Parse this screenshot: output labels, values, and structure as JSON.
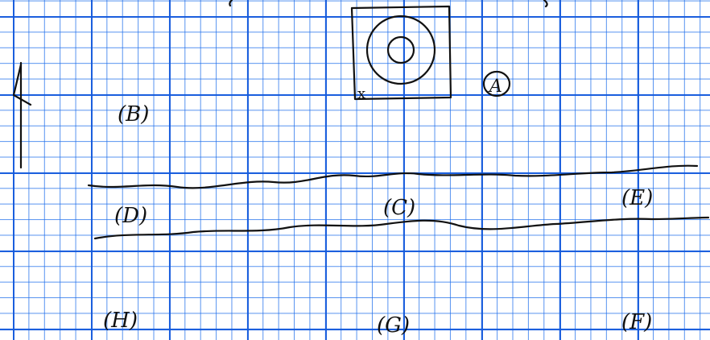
{
  "colors": {
    "paper": "#ffffff",
    "grid": "#1e6eeb",
    "ink": "#111111"
  },
  "labels": {
    "a": "A",
    "b": "(B)",
    "c": "(C)",
    "d": "(D)",
    "e": "(E)",
    "f": "(F)",
    "g": "(G)",
    "h": "(H)",
    "x_mark": "x"
  },
  "icons": {
    "north_arrow": "north-arrow-icon"
  }
}
